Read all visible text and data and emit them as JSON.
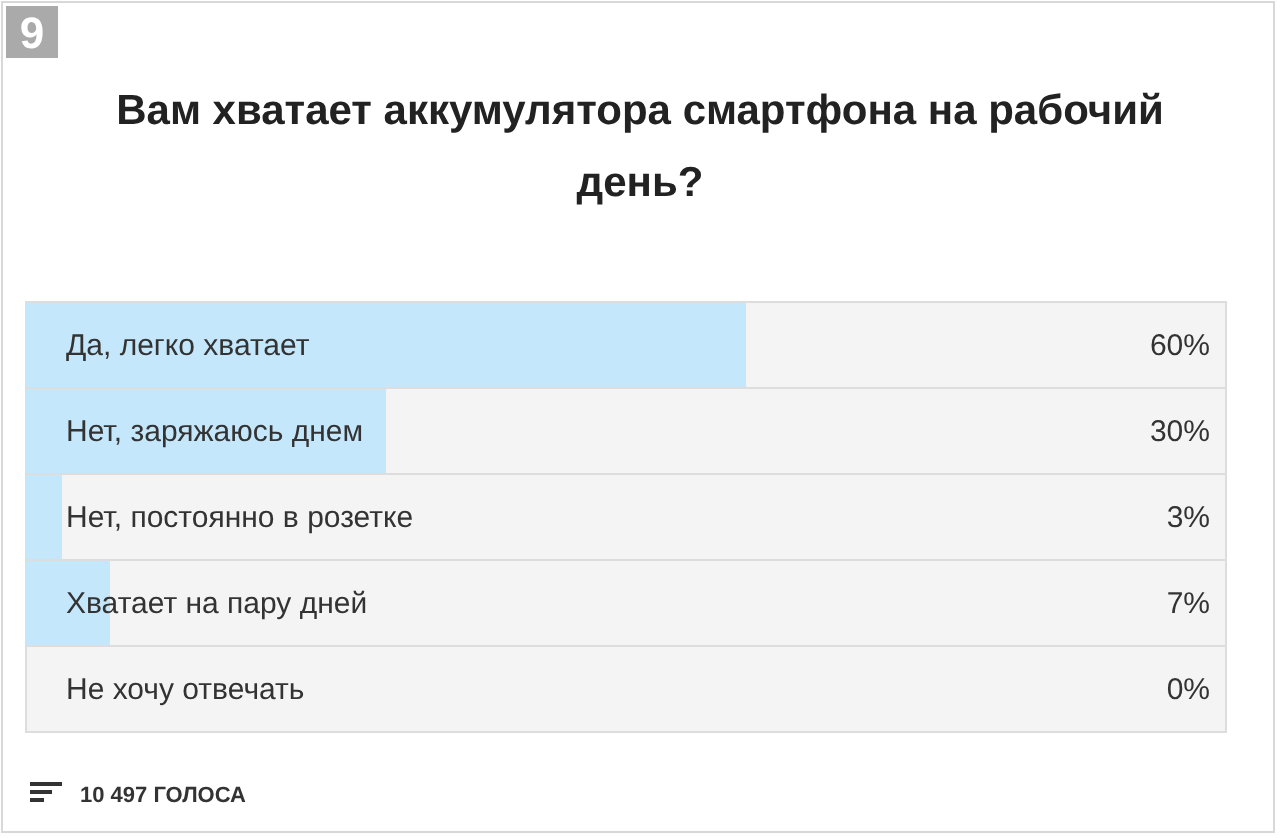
{
  "chart_data": {
    "type": "bar",
    "orientation": "horizontal",
    "title": "Вам хватает аккумулятора смартфона на рабочий день?",
    "categories": [
      "Да, легко хватает",
      "Нет, заряжаюсь днем",
      "Нет, постоянно в розетке",
      "Хватает на пару дней",
      "Не хочу отвечать"
    ],
    "values": [
      60,
      30,
      3,
      7,
      0
    ],
    "value_labels": [
      "60%",
      "30%",
      "3%",
      "7%",
      "0%"
    ],
    "color": "#c5e7fb",
    "xlim": [
      0,
      100
    ],
    "annotations": [
      "9",
      "10 497 ГОЛОСА"
    ]
  }
}
